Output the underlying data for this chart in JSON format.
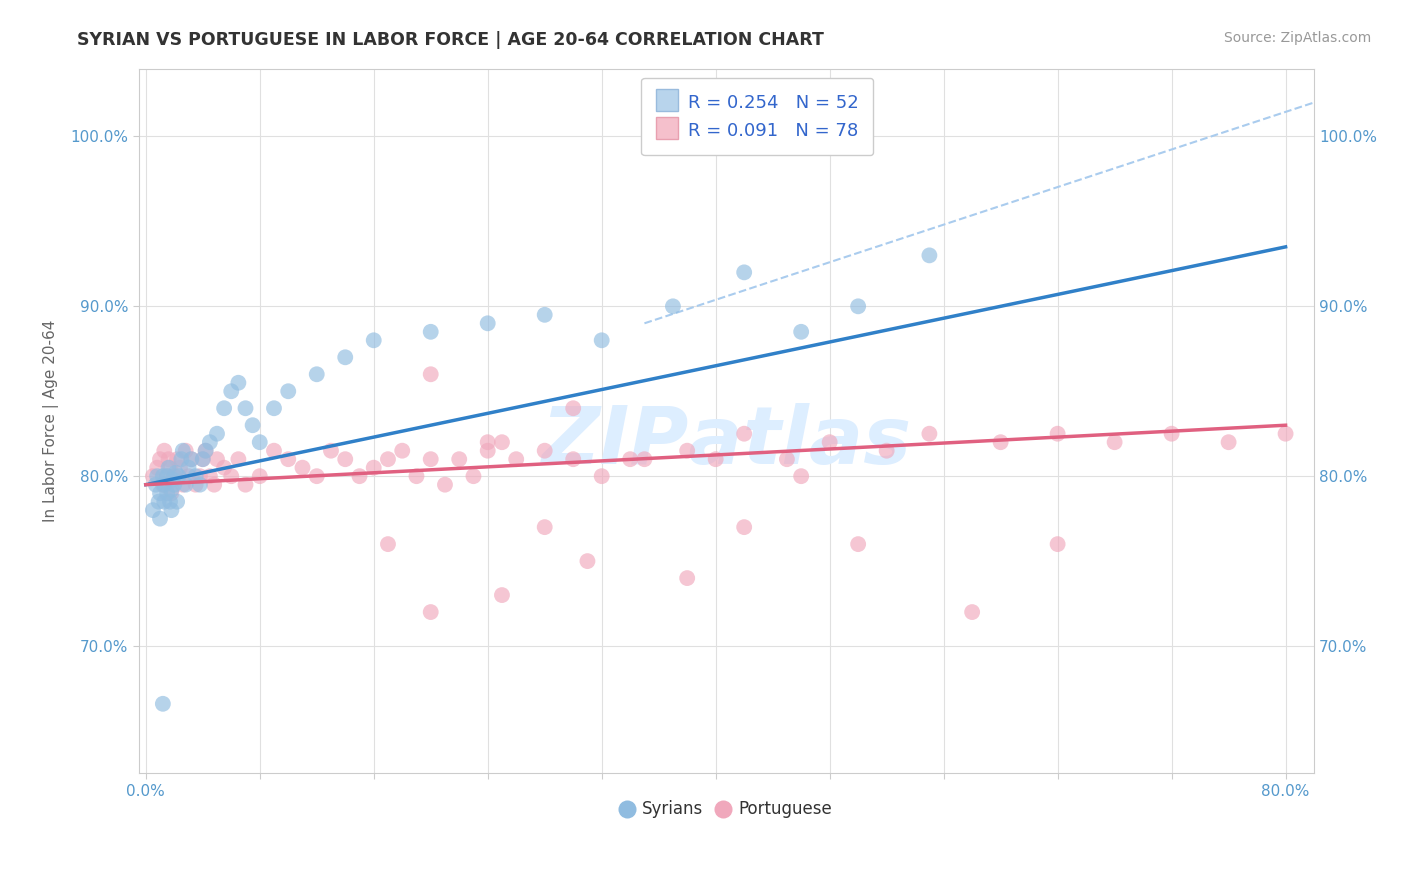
{
  "title": "SYRIAN VS PORTUGUESE IN LABOR FORCE | AGE 20-64 CORRELATION CHART",
  "source": "Source: ZipAtlas.com",
  "ylabel": "In Labor Force | Age 20-64",
  "yticks": [
    "70.0%",
    "80.0%",
    "90.0%",
    "100.0%"
  ],
  "ytick_values": [
    0.7,
    0.8,
    0.9,
    1.0
  ],
  "xlim": [
    -0.005,
    0.82
  ],
  "ylim": [
    0.625,
    1.04
  ],
  "syrians_color": "#90bce0",
  "portuguese_color": "#f0a8bc",
  "trendline_syrian_color": "#3080c8",
  "trendline_portuguese_color": "#e06080",
  "dashed_line_color": "#aaccee",
  "background_color": "#ffffff",
  "grid_color": "#e0e0e0",
  "tick_color": "#5599cc",
  "title_color": "#333333",
  "source_color": "#999999",
  "ylabel_color": "#666666",
  "watermark_color": "#ddeeff",
  "title_fontsize": 12.5,
  "axis_label_fontsize": 11,
  "tick_fontsize": 11,
  "source_fontsize": 10,
  "legend_fontsize": 13,
  "scatter_size": 130,
  "scatter_alpha": 0.65,
  "syrian_trend": [
    0.795,
    0.935
  ],
  "portuguese_trend": [
    0.795,
    0.83
  ],
  "dashed_trend": [
    0.89,
    1.02
  ],
  "syrian_x": [
    0.005,
    0.007,
    0.008,
    0.009,
    0.01,
    0.01,
    0.012,
    0.013,
    0.013,
    0.015,
    0.015,
    0.016,
    0.017,
    0.018,
    0.018,
    0.019,
    0.02,
    0.021,
    0.022,
    0.023,
    0.025,
    0.026,
    0.028,
    0.03,
    0.032,
    0.035,
    0.038,
    0.04,
    0.042,
    0.045,
    0.05,
    0.055,
    0.06,
    0.065,
    0.07,
    0.075,
    0.08,
    0.09,
    0.1,
    0.12,
    0.14,
    0.16,
    0.2,
    0.24,
    0.28,
    0.32,
    0.37,
    0.42,
    0.46,
    0.5,
    0.55,
    0.012
  ],
  "syrian_y": [
    0.78,
    0.795,
    0.8,
    0.785,
    0.775,
    0.79,
    0.8,
    0.785,
    0.795,
    0.79,
    0.8,
    0.805,
    0.785,
    0.792,
    0.78,
    0.798,
    0.795,
    0.802,
    0.785,
    0.8,
    0.81,
    0.815,
    0.795,
    0.805,
    0.81,
    0.8,
    0.795,
    0.81,
    0.815,
    0.82,
    0.825,
    0.84,
    0.85,
    0.855,
    0.84,
    0.83,
    0.82,
    0.84,
    0.85,
    0.86,
    0.87,
    0.88,
    0.885,
    0.89,
    0.895,
    0.88,
    0.9,
    0.92,
    0.885,
    0.9,
    0.93,
    0.666
  ],
  "portuguese_x": [
    0.005,
    0.008,
    0.01,
    0.012,
    0.013,
    0.015,
    0.016,
    0.017,
    0.018,
    0.02,
    0.022,
    0.024,
    0.026,
    0.028,
    0.03,
    0.032,
    0.035,
    0.038,
    0.04,
    0.042,
    0.045,
    0.048,
    0.05,
    0.055,
    0.06,
    0.065,
    0.07,
    0.08,
    0.09,
    0.1,
    0.11,
    0.12,
    0.13,
    0.14,
    0.15,
    0.16,
    0.17,
    0.18,
    0.19,
    0.2,
    0.21,
    0.22,
    0.23,
    0.24,
    0.25,
    0.26,
    0.28,
    0.3,
    0.32,
    0.35,
    0.38,
    0.42,
    0.45,
    0.48,
    0.52,
    0.55,
    0.6,
    0.64,
    0.68,
    0.72,
    0.76,
    0.8,
    0.17,
    0.2,
    0.25,
    0.31,
    0.38,
    0.42,
    0.5,
    0.58,
    0.64,
    0.2,
    0.24,
    0.28,
    0.3,
    0.34,
    0.4,
    0.46
  ],
  "portuguese_y": [
    0.8,
    0.805,
    0.81,
    0.795,
    0.815,
    0.8,
    0.81,
    0.805,
    0.79,
    0.8,
    0.81,
    0.805,
    0.795,
    0.815,
    0.8,
    0.81,
    0.795,
    0.8,
    0.81,
    0.815,
    0.8,
    0.795,
    0.81,
    0.805,
    0.8,
    0.81,
    0.795,
    0.8,
    0.815,
    0.81,
    0.805,
    0.8,
    0.815,
    0.81,
    0.8,
    0.805,
    0.81,
    0.815,
    0.8,
    0.81,
    0.795,
    0.81,
    0.8,
    0.815,
    0.82,
    0.81,
    0.815,
    0.81,
    0.8,
    0.81,
    0.815,
    0.825,
    0.81,
    0.82,
    0.815,
    0.825,
    0.82,
    0.825,
    0.82,
    0.825,
    0.82,
    0.825,
    0.76,
    0.72,
    0.73,
    0.75,
    0.74,
    0.77,
    0.76,
    0.72,
    0.76,
    0.86,
    0.82,
    0.77,
    0.84,
    0.81,
    0.81,
    0.8
  ]
}
